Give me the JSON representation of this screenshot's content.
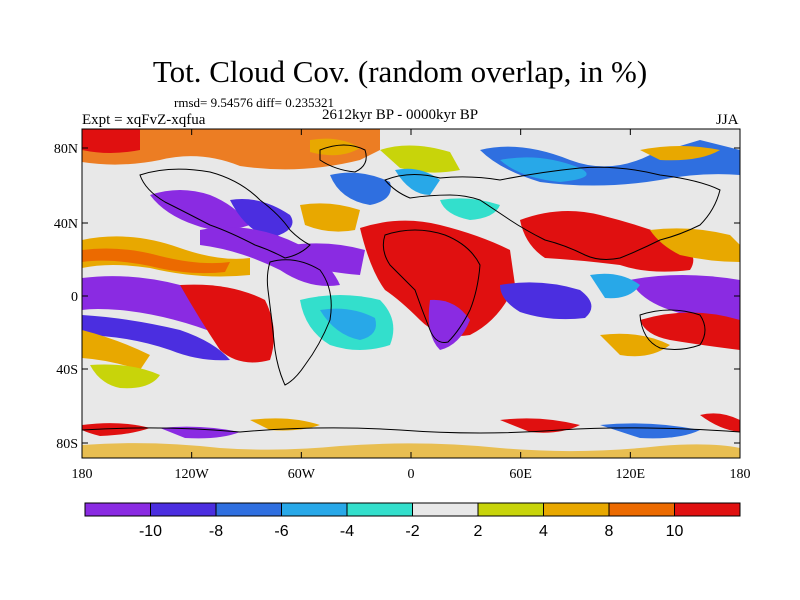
{
  "title": "Tot. Cloud Cov. (random overlap, in %)",
  "stats_line": "rmsd= 9.54576 diff= 0.235321",
  "period": "2612kyr BP - 0000kyr BP",
  "experiment": "Expt = xqFvZ-xqfua",
  "season": "JJA",
  "axes": {
    "x_ticks": [
      "180",
      "120W",
      "60W",
      "0",
      "60E",
      "120E",
      "180"
    ],
    "y_ticks": [
      "80N",
      "40N",
      "0",
      "40S",
      "80S"
    ]
  },
  "colorbar": {
    "labels": [
      "-10",
      "-8",
      "-6",
      "-4",
      "-2",
      "2",
      "4",
      "8",
      "10"
    ],
    "colors": [
      "#8a2be2",
      "#4b2ee0",
      "#2f6fe0",
      "#28a8e8",
      "#33dfcc",
      "#e8e8e8",
      "#c8d40a",
      "#e8a800",
      "#ec6a00",
      "#e01010"
    ]
  },
  "map_colors": {
    "land_outline": "#000000",
    "neutral": "#e8e8e8"
  }
}
